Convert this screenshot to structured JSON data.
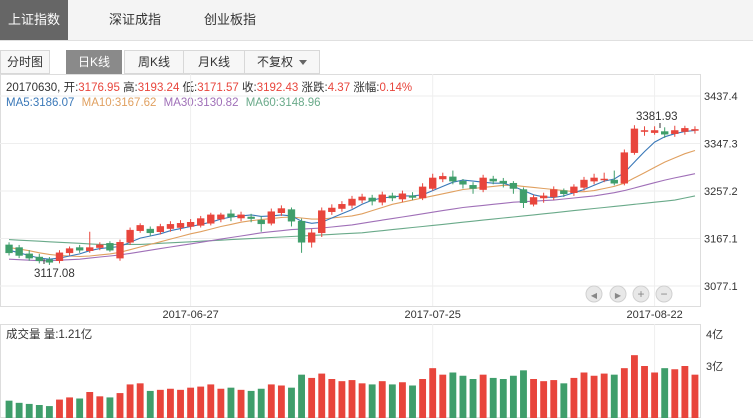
{
  "tabs": [
    {
      "label": "上证指数",
      "active": true
    },
    {
      "label": "深证成指",
      "active": false
    },
    {
      "label": "创业板指",
      "active": false
    }
  ],
  "subtabs": [
    {
      "label": "分时图",
      "active": false
    },
    {
      "label": "日K线",
      "active": true
    },
    {
      "label": "周K线",
      "active": false
    },
    {
      "label": "月K线",
      "active": false
    },
    {
      "label": "不复权",
      "active": false,
      "dropdown": true
    }
  ],
  "ohlc": {
    "date": "20170630",
    "open_label": "开:",
    "open": "3176.95",
    "high_label": "高:",
    "high": "3193.24",
    "low_label": "低:",
    "low": "3171.57",
    "close_label": "收:",
    "close": "3192.43",
    "change_label": "涨跌:",
    "change": "4.37",
    "pct_label": "涨幅:",
    "pct": "0.14%"
  },
  "ma": {
    "ma5_label": "MA5:",
    "ma5": "3186.07",
    "ma10_label": "MA10:",
    "ma10": "3167.62",
    "ma30_label": "MA30:",
    "ma30": "3130.82",
    "ma60_label": "MA60:",
    "ma60": "3148.96"
  },
  "colors": {
    "up": "#e8453c",
    "down": "#3f9e6b",
    "ma5": "#3a78b8",
    "ma10": "#e0a060",
    "ma30": "#a070b8",
    "ma60": "#6aaa8a",
    "info_dark": "#333333",
    "info_red": "#e8453c"
  },
  "volume": {
    "label": "成交量 量:1.21亿",
    "axis_top": "4亿",
    "axis_mid": "3亿"
  },
  "zoom_icons": [
    "arrow-left-icon",
    "arrow-right-icon",
    "zoom-in-icon",
    "zoom-out-icon"
  ],
  "chart_data": {
    "type": "candlestick",
    "y_ticks": [
      "3437.4",
      "3347.3",
      "3257.2",
      "3167.1",
      "3077.1"
    ],
    "ylim": [
      3077.1,
      3437.4
    ],
    "x_ticks": [
      "2017-06-27",
      "2017-07-25",
      "2017-08-22"
    ],
    "annotations": {
      "min": "3117.08",
      "max": "3381.93"
    },
    "candles": [
      [
        3155,
        3140,
        3160,
        3135
      ],
      [
        3150,
        3135,
        3155,
        3130
      ],
      [
        3138,
        3130,
        3145,
        3125
      ],
      [
        3132,
        3125,
        3138,
        3120
      ],
      [
        3127,
        3122,
        3132,
        3117
      ],
      [
        3125,
        3140,
        3145,
        3120
      ],
      [
        3140,
        3148,
        3152,
        3135
      ],
      [
        3150,
        3145,
        3155,
        3140
      ],
      [
        3144,
        3150,
        3180,
        3140
      ],
      [
        3150,
        3155,
        3160,
        3145
      ],
      [
        3158,
        3145,
        3162,
        3142
      ],
      [
        3130,
        3160,
        3165,
        3125
      ],
      [
        3160,
        3183,
        3188,
        3155
      ],
      [
        3182,
        3192,
        3196,
        3178
      ],
      [
        3185,
        3178,
        3190,
        3172
      ],
      [
        3180,
        3190,
        3195,
        3175
      ],
      [
        3186,
        3194,
        3200,
        3180
      ],
      [
        3188,
        3196,
        3202,
        3182
      ],
      [
        3190,
        3198,
        3204,
        3184
      ],
      [
        3192,
        3205,
        3210,
        3188
      ],
      [
        3196,
        3212,
        3216,
        3192
      ],
      [
        3204,
        3212,
        3216,
        3198
      ],
      [
        3214,
        3208,
        3222,
        3200
      ],
      [
        3206,
        3212,
        3218,
        3200
      ],
      [
        3208,
        3205,
        3214,
        3198
      ],
      [
        3202,
        3195,
        3210,
        3180
      ],
      [
        3196,
        3218,
        3224,
        3192
      ],
      [
        3216,
        3224,
        3230,
        3210
      ],
      [
        3222,
        3200,
        3226,
        3190
      ],
      [
        3200,
        3160,
        3205,
        3140
      ],
      [
        3160,
        3178,
        3185,
        3150
      ],
      [
        3178,
        3220,
        3226,
        3170
      ],
      [
        3218,
        3225,
        3232,
        3212
      ],
      [
        3224,
        3232,
        3238,
        3218
      ],
      [
        3230,
        3242,
        3248,
        3224
      ],
      [
        3240,
        3246,
        3252,
        3234
      ],
      [
        3244,
        3238,
        3250,
        3230
      ],
      [
        3236,
        3250,
        3256,
        3230
      ],
      [
        3248,
        3244,
        3254,
        3238
      ],
      [
        3242,
        3252,
        3258,
        3236
      ],
      [
        3248,
        3245,
        3255,
        3240
      ],
      [
        3244,
        3265,
        3272,
        3240
      ],
      [
        3262,
        3282,
        3290,
        3258
      ],
      [
        3280,
        3285,
        3292,
        3274
      ],
      [
        3284,
        3276,
        3296,
        3270
      ],
      [
        3276,
        3270,
        3280,
        3262
      ],
      [
        3268,
        3262,
        3274,
        3252
      ],
      [
        3260,
        3282,
        3288,
        3255
      ],
      [
        3280,
        3276,
        3286,
        3270
      ],
      [
        3276,
        3272,
        3282,
        3264
      ],
      [
        3272,
        3262,
        3276,
        3252
      ],
      [
        3260,
        3235,
        3264,
        3225
      ],
      [
        3232,
        3245,
        3250,
        3228
      ],
      [
        3244,
        3248,
        3254,
        3235
      ],
      [
        3246,
        3260,
        3266,
        3240
      ],
      [
        3258,
        3252,
        3262,
        3246
      ],
      [
        3254,
        3265,
        3270,
        3248
      ],
      [
        3264,
        3278,
        3284,
        3258
      ],
      [
        3276,
        3282,
        3290,
        3270
      ],
      [
        3280,
        3280,
        3292,
        3274
      ],
      [
        3278,
        3272,
        3296,
        3268
      ],
      [
        3272,
        3330,
        3336,
        3268
      ],
      [
        3330,
        3375,
        3382,
        3326
      ],
      [
        3370,
        3372,
        3380,
        3362
      ],
      [
        3368,
        3372,
        3380,
        3364
      ],
      [
        3370,
        3365,
        3378,
        3358
      ],
      [
        3366,
        3372,
        3381,
        3360
      ],
      [
        3370,
        3376,
        3381,
        3364
      ],
      [
        3372,
        3374,
        3380,
        3366
      ]
    ],
    "volumes": [
      0.8,
      0.7,
      0.65,
      0.6,
      0.55,
      0.85,
      0.95,
      0.9,
      1.2,
      1.0,
      0.95,
      1.15,
      1.55,
      1.6,
      1.25,
      1.3,
      1.35,
      1.3,
      1.4,
      1.45,
      1.55,
      1.35,
      1.4,
      1.3,
      1.25,
      1.35,
      1.55,
      1.5,
      1.4,
      2.0,
      1.85,
      2.05,
      1.8,
      1.7,
      1.75,
      1.6,
      1.55,
      1.7,
      1.55,
      1.65,
      1.5,
      1.8,
      2.3,
      2.0,
      2.1,
      1.95,
      1.8,
      2.0,
      1.85,
      1.8,
      1.95,
      2.2,
      1.8,
      1.7,
      1.75,
      1.6,
      1.85,
      2.1,
      1.95,
      2.05,
      2.0,
      2.3,
      2.9,
      2.4,
      2.1,
      2.3,
      2.25,
      2.4,
      2.0
    ],
    "vol_ylim": [
      0,
      3.6
    ],
    "ma5": [
      3145,
      3140,
      3135,
      3130,
      3128,
      3130,
      3134,
      3138,
      3144,
      3148,
      3150,
      3152,
      3160,
      3168,
      3172,
      3176,
      3182,
      3186,
      3190,
      3194,
      3198,
      3204,
      3208,
      3210,
      3212,
      3209,
      3210,
      3212,
      3210,
      3200,
      3196,
      3198,
      3206,
      3214,
      3222,
      3232,
      3240,
      3244,
      3246,
      3248,
      3248,
      3250,
      3258,
      3266,
      3274,
      3278,
      3276,
      3274,
      3272,
      3272,
      3266,
      3258,
      3250,
      3246,
      3245,
      3248,
      3254,
      3260,
      3268,
      3276,
      3280,
      3292,
      3312,
      3332,
      3350,
      3360,
      3366,
      3370,
      3372
    ],
    "ma10": [
      3150,
      3147,
      3144,
      3140,
      3137,
      3135,
      3134,
      3133,
      3134,
      3136,
      3138,
      3141,
      3146,
      3151,
      3156,
      3161,
      3166,
      3171,
      3176,
      3180,
      3185,
      3190,
      3194,
      3198,
      3201,
      3203,
      3205,
      3207,
      3208,
      3206,
      3204,
      3204,
      3206,
      3208,
      3210,
      3214,
      3220,
      3226,
      3232,
      3236,
      3240,
      3244,
      3248,
      3252,
      3256,
      3260,
      3262,
      3264,
      3266,
      3268,
      3268,
      3266,
      3264,
      3262,
      3260,
      3258,
      3256,
      3256,
      3258,
      3262,
      3266,
      3272,
      3282,
      3292,
      3302,
      3312,
      3320,
      3328,
      3334
    ],
    "ma30": [
      3128,
      3127,
      3126,
      3125,
      3125,
      3126,
      3127,
      3128,
      3130,
      3132,
      3134,
      3136,
      3139,
      3142,
      3145,
      3148,
      3151,
      3154,
      3157,
      3160,
      3163,
      3166,
      3169,
      3172,
      3175,
      3178,
      3180,
      3182,
      3184,
      3185,
      3186,
      3187,
      3189,
      3191,
      3193,
      3196,
      3199,
      3202,
      3205,
      3208,
      3211,
      3214,
      3217,
      3220,
      3223,
      3226,
      3228,
      3230,
      3232,
      3234,
      3236,
      3237,
      3238,
      3239,
      3240,
      3242,
      3244,
      3246,
      3248,
      3251,
      3254,
      3258,
      3263,
      3268,
      3273,
      3278,
      3282,
      3286,
      3290
    ],
    "ma60": [
      3165,
      3164,
      3163,
      3162,
      3161,
      3160,
      3159,
      3158,
      3157,
      3156,
      3156,
      3156,
      3156,
      3156,
      3157,
      3158,
      3159,
      3160,
      3161,
      3162,
      3163,
      3164,
      3165,
      3166,
      3167,
      3168,
      3169,
      3170,
      3171,
      3172,
      3173,
      3174,
      3175,
      3176,
      3177,
      3178,
      3180,
      3182,
      3184,
      3186,
      3188,
      3190,
      3192,
      3194,
      3196,
      3198,
      3200,
      3202,
      3204,
      3206,
      3208,
      3210,
      3212,
      3214,
      3216,
      3218,
      3220,
      3222,
      3224,
      3226,
      3228,
      3230,
      3232,
      3234,
      3236,
      3238,
      3240,
      3244,
      3248
    ]
  }
}
